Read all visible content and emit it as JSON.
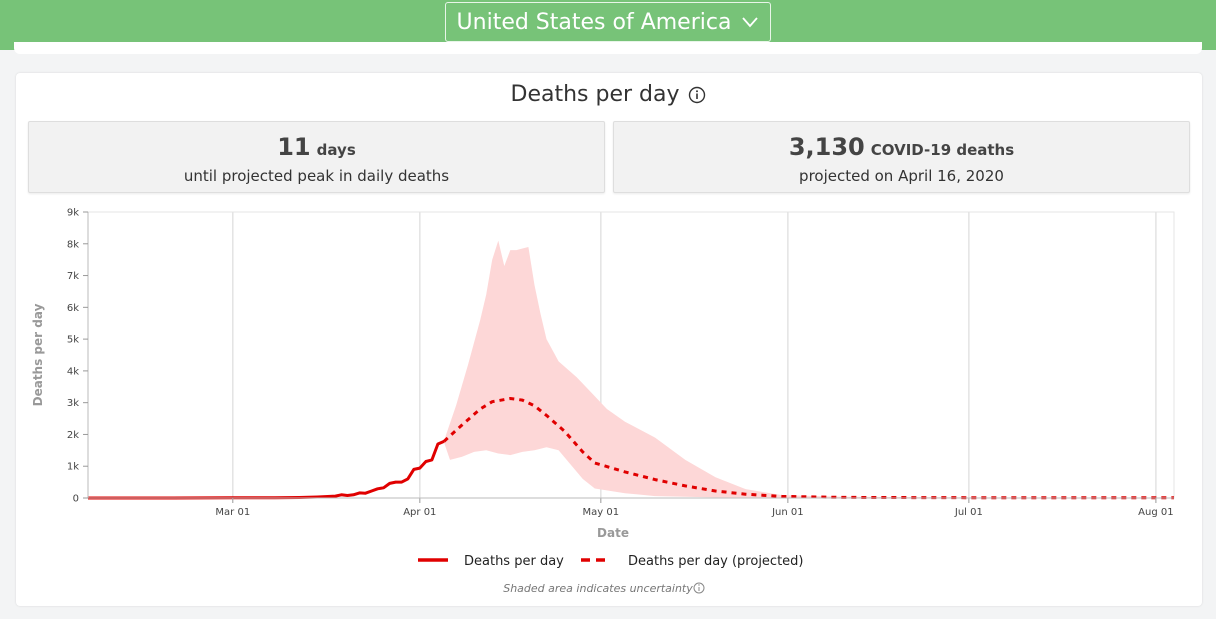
{
  "header": {
    "country": "United States of America",
    "dropdown_icon": "chevron-down-icon",
    "background_color": "#77c378"
  },
  "section": {
    "title": "Deaths per day",
    "info_icon": "info-icon"
  },
  "stats": {
    "left": {
      "number": "11",
      "unit": "days",
      "caption": "until projected peak in daily deaths"
    },
    "right": {
      "number": "3,130",
      "unit": "COVID-19 deaths",
      "caption": "projected on April 16, 2020"
    }
  },
  "chart_data": {
    "type": "line",
    "xlabel": "Date",
    "ylabel": "Deaths per day",
    "x_range": [
      "2020-02-06",
      "2020-08-04"
    ],
    "ylim": [
      0,
      9000
    ],
    "x_ticks": [
      {
        "date": "2020-03-01",
        "label": "Mar 01"
      },
      {
        "date": "2020-04-01",
        "label": "Apr 01"
      },
      {
        "date": "2020-05-01",
        "label": "May 01"
      },
      {
        "date": "2020-06-01",
        "label": "Jun 01"
      },
      {
        "date": "2020-07-01",
        "label": "Jul 01"
      },
      {
        "date": "2020-08-01",
        "label": "Aug 01"
      }
    ],
    "y_ticks": [
      {
        "value": 0,
        "label": "0"
      },
      {
        "value": 1000,
        "label": "1k"
      },
      {
        "value": 2000,
        "label": "2k"
      },
      {
        "value": 3000,
        "label": "3k"
      },
      {
        "value": 4000,
        "label": "4k"
      },
      {
        "value": 5000,
        "label": "5k"
      },
      {
        "value": 6000,
        "label": "6k"
      },
      {
        "value": 7000,
        "label": "7k"
      },
      {
        "value": 8000,
        "label": "8k"
      },
      {
        "value": 9000,
        "label": "9k"
      }
    ],
    "grid": true,
    "line_color": "#e00000",
    "band_color": "#fdd7d7",
    "series": [
      {
        "name": "Deaths per day",
        "style": "solid",
        "points": [
          [
            "2020-02-06",
            0
          ],
          [
            "2020-02-20",
            0
          ],
          [
            "2020-03-01",
            5
          ],
          [
            "2020-03-08",
            10
          ],
          [
            "2020-03-12",
            15
          ],
          [
            "2020-03-15",
            30
          ],
          [
            "2020-03-18",
            60
          ],
          [
            "2020-03-19",
            100
          ],
          [
            "2020-03-20",
            80
          ],
          [
            "2020-03-21",
            100
          ],
          [
            "2020-03-22",
            160
          ],
          [
            "2020-03-23",
            150
          ],
          [
            "2020-03-24",
            220
          ],
          [
            "2020-03-25",
            290
          ],
          [
            "2020-03-26",
            320
          ],
          [
            "2020-03-27",
            460
          ],
          [
            "2020-03-28",
            500
          ],
          [
            "2020-03-29",
            500
          ],
          [
            "2020-03-30",
            600
          ],
          [
            "2020-03-31",
            900
          ],
          [
            "2020-04-01",
            940
          ],
          [
            "2020-04-02",
            1150
          ],
          [
            "2020-04-03",
            1200
          ],
          [
            "2020-04-04",
            1700
          ],
          [
            "2020-04-05",
            1780
          ]
        ]
      },
      {
        "name": "Deaths per day (projected)",
        "style": "dashed",
        "points": [
          [
            "2020-04-05",
            1780
          ],
          [
            "2020-04-08",
            2300
          ],
          [
            "2020-04-11",
            2800
          ],
          [
            "2020-04-13",
            3030
          ],
          [
            "2020-04-16",
            3130
          ],
          [
            "2020-04-18",
            3080
          ],
          [
            "2020-04-20",
            2900
          ],
          [
            "2020-04-22",
            2600
          ],
          [
            "2020-04-25",
            2100
          ],
          [
            "2020-04-28",
            1450
          ],
          [
            "2020-04-30",
            1100
          ],
          [
            "2020-05-05",
            820
          ],
          [
            "2020-05-10",
            580
          ],
          [
            "2020-05-15",
            380
          ],
          [
            "2020-05-20",
            220
          ],
          [
            "2020-05-25",
            120
          ],
          [
            "2020-05-31",
            50
          ],
          [
            "2020-06-10",
            20
          ],
          [
            "2020-07-01",
            10
          ],
          [
            "2020-08-04",
            5
          ]
        ]
      }
    ],
    "uncertainty_band": {
      "upper": [
        [
          "2020-04-05",
          1800
        ],
        [
          "2020-04-07",
          2900
        ],
        [
          "2020-04-09",
          4200
        ],
        [
          "2020-04-11",
          5600
        ],
        [
          "2020-04-12",
          6400
        ],
        [
          "2020-04-13",
          7500
        ],
        [
          "2020-04-14",
          8100
        ],
        [
          "2020-04-15",
          7300
        ],
        [
          "2020-04-16",
          7800
        ],
        [
          "2020-04-17",
          7800
        ],
        [
          "2020-04-18",
          7850
        ],
        [
          "2020-04-19",
          7900
        ],
        [
          "2020-04-20",
          6700
        ],
        [
          "2020-04-21",
          5800
        ],
        [
          "2020-04-22",
          5000
        ],
        [
          "2020-04-24",
          4300
        ],
        [
          "2020-04-27",
          3800
        ],
        [
          "2020-04-30",
          3200
        ],
        [
          "2020-05-02",
          2800
        ],
        [
          "2020-05-05",
          2400
        ],
        [
          "2020-05-10",
          1900
        ],
        [
          "2020-05-15",
          1200
        ],
        [
          "2020-05-20",
          650
        ],
        [
          "2020-05-25",
          280
        ],
        [
          "2020-05-31",
          90
        ],
        [
          "2020-06-10",
          40
        ],
        [
          "2020-07-01",
          20
        ],
        [
          "2020-08-04",
          10
        ]
      ],
      "lower": [
        [
          "2020-04-05",
          1750
        ],
        [
          "2020-04-06",
          1200
        ],
        [
          "2020-04-08",
          1300
        ],
        [
          "2020-04-10",
          1450
        ],
        [
          "2020-04-12",
          1500
        ],
        [
          "2020-04-14",
          1400
        ],
        [
          "2020-04-16",
          1350
        ],
        [
          "2020-04-18",
          1450
        ],
        [
          "2020-04-20",
          1500
        ],
        [
          "2020-04-22",
          1600
        ],
        [
          "2020-04-24",
          1500
        ],
        [
          "2020-04-26",
          1050
        ],
        [
          "2020-04-28",
          600
        ],
        [
          "2020-04-30",
          300
        ],
        [
          "2020-05-05",
          150
        ],
        [
          "2020-05-10",
          60
        ],
        [
          "2020-05-20",
          20
        ],
        [
          "2020-06-10",
          5
        ],
        [
          "2020-08-04",
          0
        ]
      ]
    },
    "legend": {
      "position": "bottom",
      "items": [
        {
          "label": "Deaths per day",
          "style": "solid"
        },
        {
          "label": "Deaths per day (projected)",
          "style": "dashed"
        }
      ]
    },
    "note": "Shaded area indicates uncertainty"
  }
}
